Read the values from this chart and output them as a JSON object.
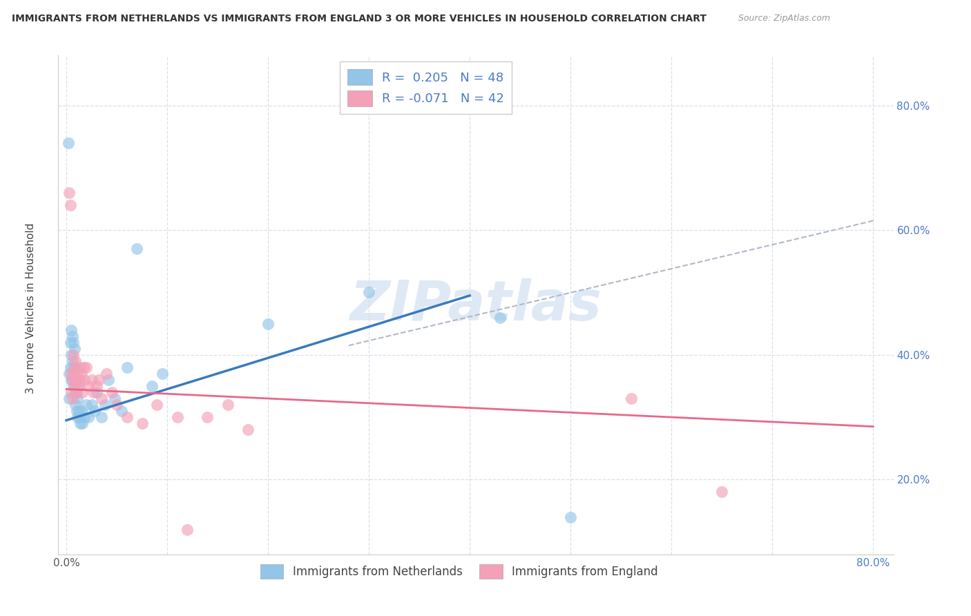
{
  "title": "IMMIGRANTS FROM NETHERLANDS VS IMMIGRANTS FROM ENGLAND 3 OR MORE VEHICLES IN HOUSEHOLD CORRELATION CHART",
  "source": "Source: ZipAtlas.com",
  "ylabel": "3 or more Vehicles in Household",
  "legend_label_blue": "Immigrants from Netherlands",
  "legend_label_pink": "Immigrants from England",
  "R_blue": 0.205,
  "N_blue": 48,
  "R_pink": -0.071,
  "N_pink": 42,
  "xlim": [
    -0.008,
    0.82
  ],
  "ylim": [
    0.08,
    0.88
  ],
  "xtick_positions": [
    0.0,
    0.1,
    0.2,
    0.3,
    0.4,
    0.5,
    0.6,
    0.7,
    0.8
  ],
  "xticklabels": [
    "0.0%",
    "",
    "",
    "",
    "",
    "",
    "",
    "",
    "80.0%"
  ],
  "ytick_positions": [
    0.2,
    0.4,
    0.6,
    0.8
  ],
  "yticklabels": [
    "20.0%",
    "40.0%",
    "60.0%",
    "80.0%"
  ],
  "color_blue": "#92c5e8",
  "color_pink": "#f4a0b8",
  "color_blue_line": "#3a7abf",
  "color_pink_line": "#e8688a",
  "color_dashed": "#b0b8c8",
  "watermark": "ZIPatlas",
  "title_fontsize": 10,
  "source_fontsize": 9,
  "label_fontsize": 11,
  "tick_fontsize": 11,
  "legend_fontsize": 13,
  "blue_x": [
    0.002,
    0.003,
    0.003,
    0.004,
    0.004,
    0.005,
    0.005,
    0.005,
    0.006,
    0.006,
    0.006,
    0.007,
    0.007,
    0.007,
    0.008,
    0.008,
    0.008,
    0.009,
    0.009,
    0.01,
    0.01,
    0.011,
    0.011,
    0.012,
    0.012,
    0.013,
    0.014,
    0.015,
    0.016,
    0.018,
    0.02,
    0.022,
    0.025,
    0.028,
    0.03,
    0.035,
    0.038,
    0.042,
    0.048,
    0.055,
    0.06,
    0.07,
    0.085,
    0.095,
    0.2,
    0.3,
    0.43,
    0.5
  ],
  "blue_y": [
    0.74,
    0.33,
    0.37,
    0.38,
    0.42,
    0.36,
    0.4,
    0.44,
    0.36,
    0.39,
    0.43,
    0.35,
    0.38,
    0.42,
    0.34,
    0.38,
    0.41,
    0.32,
    0.36,
    0.31,
    0.34,
    0.3,
    0.33,
    0.31,
    0.35,
    0.3,
    0.29,
    0.31,
    0.29,
    0.3,
    0.32,
    0.3,
    0.32,
    0.31,
    0.34,
    0.3,
    0.32,
    0.36,
    0.33,
    0.31,
    0.38,
    0.57,
    0.35,
    0.37,
    0.45,
    0.5,
    0.46,
    0.14
  ],
  "pink_x": [
    0.003,
    0.004,
    0.005,
    0.005,
    0.006,
    0.006,
    0.007,
    0.007,
    0.008,
    0.008,
    0.009,
    0.009,
    0.01,
    0.01,
    0.011,
    0.012,
    0.013,
    0.014,
    0.015,
    0.016,
    0.017,
    0.018,
    0.02,
    0.022,
    0.025,
    0.027,
    0.03,
    0.032,
    0.035,
    0.04,
    0.045,
    0.05,
    0.06,
    0.075,
    0.09,
    0.11,
    0.12,
    0.14,
    0.16,
    0.18,
    0.56,
    0.65
  ],
  "pink_y": [
    0.66,
    0.64,
    0.34,
    0.37,
    0.33,
    0.36,
    0.37,
    0.4,
    0.35,
    0.38,
    0.36,
    0.39,
    0.34,
    0.37,
    0.35,
    0.36,
    0.38,
    0.36,
    0.37,
    0.34,
    0.38,
    0.36,
    0.38,
    0.35,
    0.36,
    0.34,
    0.35,
    0.36,
    0.33,
    0.37,
    0.34,
    0.32,
    0.3,
    0.29,
    0.32,
    0.3,
    0.12,
    0.3,
    0.32,
    0.28,
    0.33,
    0.18
  ],
  "blue_line_x": [
    0.0,
    0.4
  ],
  "blue_line_y": [
    0.295,
    0.495
  ],
  "pink_line_x": [
    0.0,
    0.8
  ],
  "pink_line_y": [
    0.345,
    0.285
  ],
  "dash_line_x": [
    0.28,
    0.8
  ],
  "dash_line_y": [
    0.415,
    0.615
  ]
}
